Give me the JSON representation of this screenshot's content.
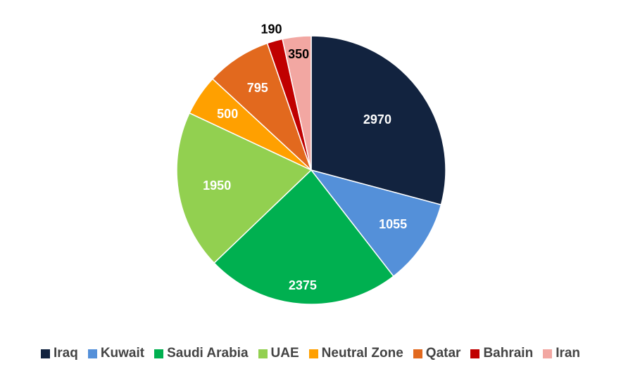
{
  "chart_data": {
    "type": "pie",
    "title": "",
    "categories": [
      "Iraq",
      "Kuwait",
      "Saudi Arabia",
      "UAE",
      "Neutral Zone",
      "Qatar",
      "Bahrain",
      "Iran"
    ],
    "values": [
      2970,
      1055,
      2375,
      1950,
      500,
      795,
      190,
      350
    ],
    "colors": [
      "#12233f",
      "#5490d9",
      "#00b050",
      "#92d050",
      "#ffa000",
      "#e2691e",
      "#c00000",
      "#f2a7a2"
    ],
    "label_colors": [
      "#ffffff",
      "#ffffff",
      "#ffffff",
      "#ffffff",
      "#ffffff",
      "#ffffff",
      "#000000",
      "#000000"
    ],
    "legend_position": "bottom",
    "start_angle": "12 o'clock",
    "direction": "clockwise"
  }
}
